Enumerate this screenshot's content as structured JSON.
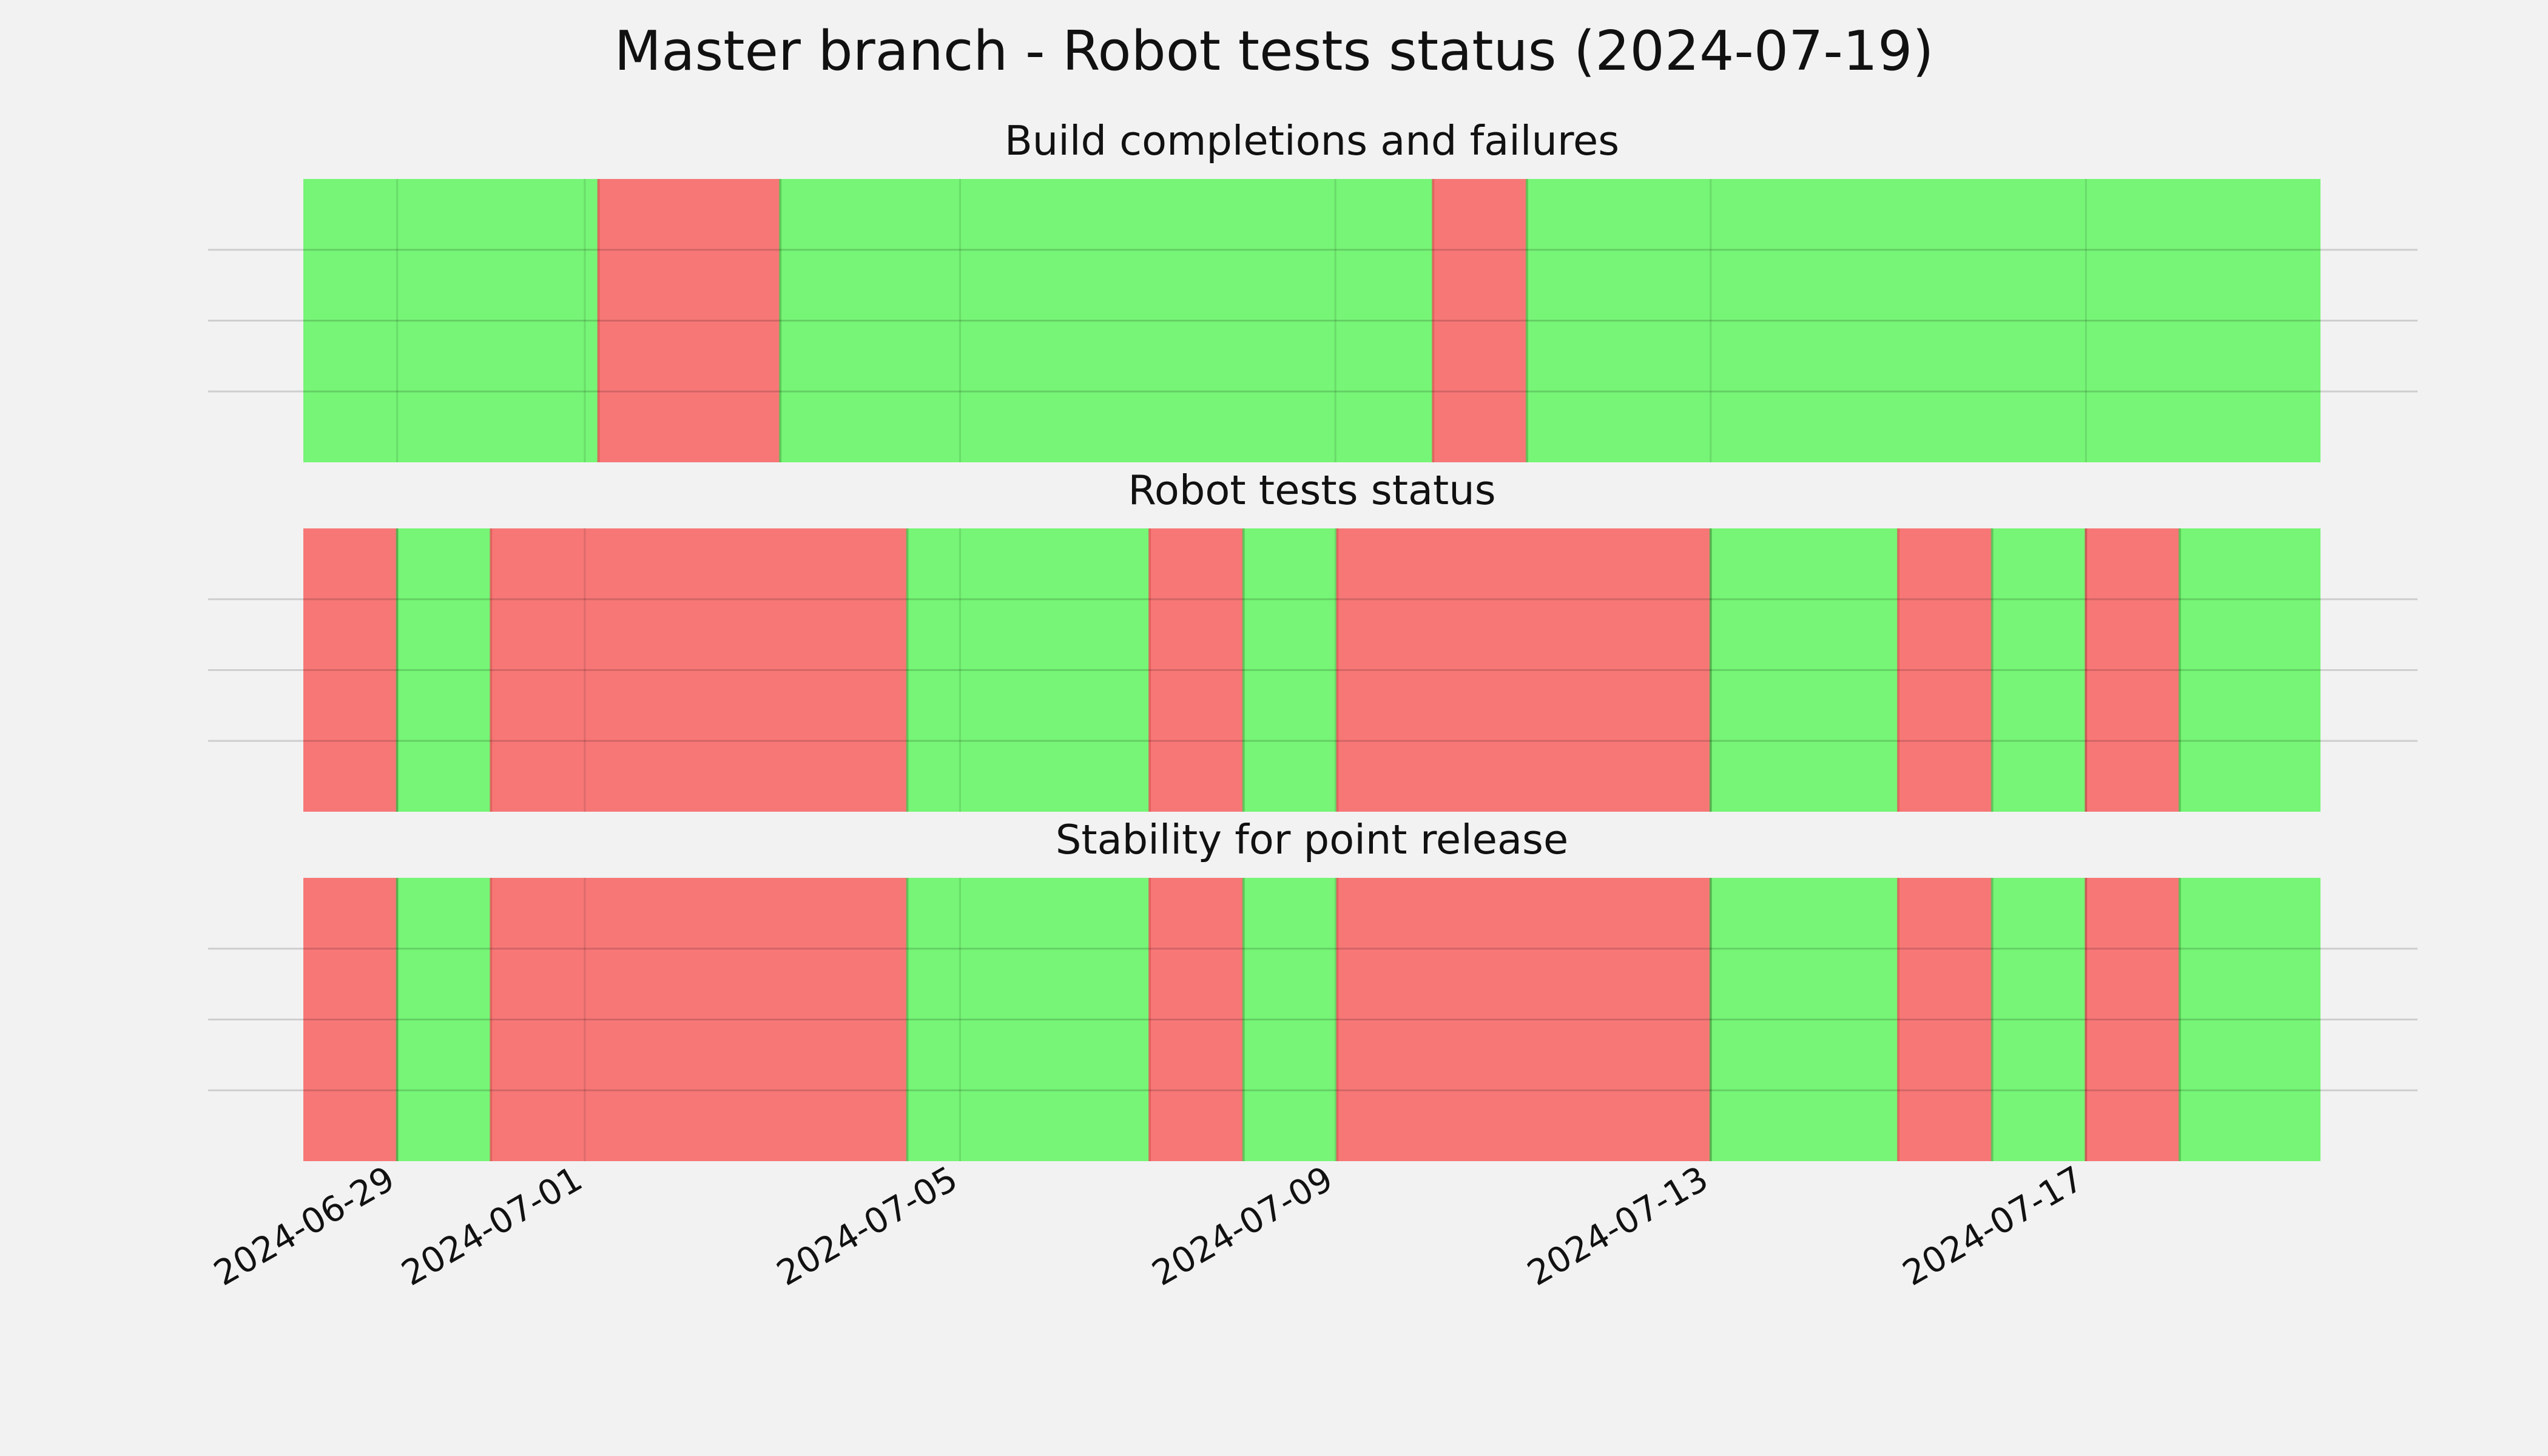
{
  "chart_data": {
    "type": "timeline",
    "title": "Master branch - Robot tests status (2024-07-19)",
    "x_range": [
      "2024-06-28T00:00",
      "2024-07-19T12:00"
    ],
    "x_ticks": [
      "2024-06-29",
      "2024-07-01",
      "2024-07-05",
      "2024-07-09",
      "2024-07-13",
      "2024-07-17"
    ],
    "grid": true,
    "colors": {
      "pass": "#76f576",
      "fail": "#f77777"
    },
    "panels": [
      {
        "title": "Build completions and failures",
        "segments": [
          {
            "start": "2024-06-28T00:00",
            "end": "2024-07-01T03:30",
            "status": "pass"
          },
          {
            "start": "2024-07-01T03:30",
            "end": "2024-07-03T02:00",
            "status": "fail"
          },
          {
            "start": "2024-07-03T02:00",
            "end": "2024-07-10T01:00",
            "status": "pass"
          },
          {
            "start": "2024-07-10T01:00",
            "end": "2024-07-11T01:00",
            "status": "fail"
          },
          {
            "start": "2024-07-11T01:00",
            "end": "2024-07-19T12:00",
            "status": "pass"
          }
        ]
      },
      {
        "title": "Robot tests status",
        "segments": [
          {
            "start": "2024-06-28T00:00",
            "end": "2024-06-29T00:00",
            "status": "fail"
          },
          {
            "start": "2024-06-29T00:00",
            "end": "2024-06-30T00:00",
            "status": "pass"
          },
          {
            "start": "2024-06-30T00:00",
            "end": "2024-07-04T10:30",
            "status": "fail"
          },
          {
            "start": "2024-07-04T10:30",
            "end": "2024-07-07T00:30",
            "status": "pass"
          },
          {
            "start": "2024-07-07T00:30",
            "end": "2024-07-08T00:30",
            "status": "fail"
          },
          {
            "start": "2024-07-08T00:30",
            "end": "2024-07-09T00:30",
            "status": "pass"
          },
          {
            "start": "2024-07-09T00:30",
            "end": "2024-07-13T00:00",
            "status": "fail"
          },
          {
            "start": "2024-07-13T00:00",
            "end": "2024-07-15T00:00",
            "status": "pass"
          },
          {
            "start": "2024-07-15T00:00",
            "end": "2024-07-16T00:00",
            "status": "fail"
          },
          {
            "start": "2024-07-16T00:00",
            "end": "2024-07-17T00:00",
            "status": "pass"
          },
          {
            "start": "2024-07-17T00:00",
            "end": "2024-07-18T00:00",
            "status": "fail"
          },
          {
            "start": "2024-07-18T00:00",
            "end": "2024-07-19T12:00",
            "status": "pass"
          }
        ]
      },
      {
        "title": "Stability for point release",
        "segments": [
          {
            "start": "2024-06-28T00:00",
            "end": "2024-06-29T00:00",
            "status": "fail"
          },
          {
            "start": "2024-06-29T00:00",
            "end": "2024-06-30T00:00",
            "status": "pass"
          },
          {
            "start": "2024-06-30T00:00",
            "end": "2024-07-04T10:30",
            "status": "fail"
          },
          {
            "start": "2024-07-04T10:30",
            "end": "2024-07-07T00:30",
            "status": "pass"
          },
          {
            "start": "2024-07-07T00:30",
            "end": "2024-07-08T00:30",
            "status": "fail"
          },
          {
            "start": "2024-07-08T00:30",
            "end": "2024-07-09T00:30",
            "status": "pass"
          },
          {
            "start": "2024-07-09T00:30",
            "end": "2024-07-13T00:00",
            "status": "fail"
          },
          {
            "start": "2024-07-13T00:00",
            "end": "2024-07-15T00:00",
            "status": "pass"
          },
          {
            "start": "2024-07-15T00:00",
            "end": "2024-07-16T00:00",
            "status": "fail"
          },
          {
            "start": "2024-07-16T00:00",
            "end": "2024-07-17T00:00",
            "status": "pass"
          },
          {
            "start": "2024-07-17T00:00",
            "end": "2024-07-18T00:00",
            "status": "fail"
          },
          {
            "start": "2024-07-18T00:00",
            "end": "2024-07-19T12:00",
            "status": "pass"
          }
        ]
      }
    ]
  }
}
